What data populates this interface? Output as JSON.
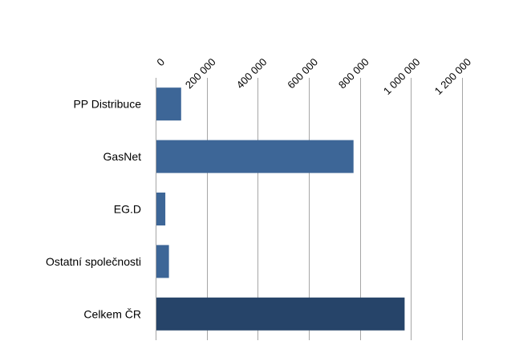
{
  "chart_data": {
    "type": "bar",
    "orientation": "horizontal",
    "axis_position": "top",
    "categories": [
      "PP Distribuce",
      "GasNet",
      "EG.D",
      "Ostatní společnosti",
      "Celkem ČR"
    ],
    "values": [
      100000,
      775000,
      38000,
      52000,
      975000
    ],
    "tick_values": [
      0,
      200000,
      400000,
      600000,
      800000,
      1000000,
      1200000
    ],
    "tick_labels": [
      "0",
      "200 000",
      "400 000",
      "600 000",
      "800 000",
      "1 000 000",
      "1 200 000"
    ],
    "xlim": [
      0,
      1200000
    ],
    "grid": true,
    "legend": "none",
    "colors": {
      "bar": "#3d6697",
      "highlight": "#264469",
      "grid": "#a6a6a6",
      "axis": "#a6a6a6"
    },
    "highlight_index": 4,
    "title": "",
    "xlabel": "",
    "ylabel": ""
  }
}
